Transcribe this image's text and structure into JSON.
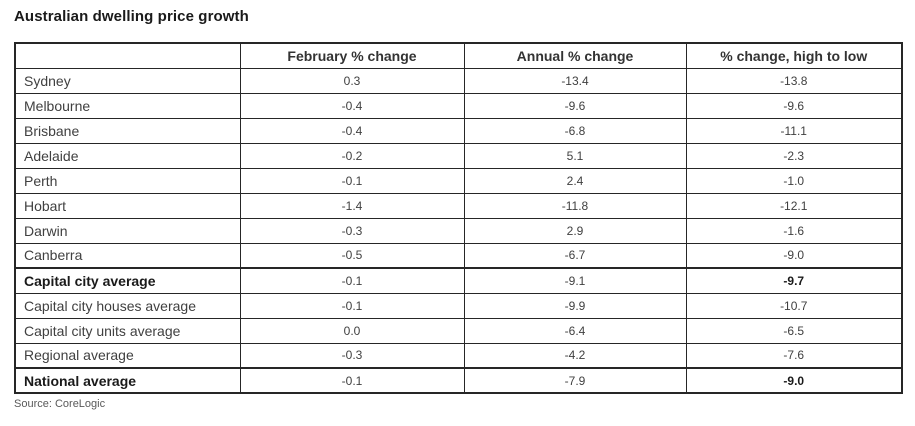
{
  "title": "Australian dwelling price growth",
  "source_label": "Source: CoreLogic",
  "table": {
    "columns": [
      "",
      "February % change",
      "Annual % change",
      "% change, high to low"
    ],
    "rows": [
      {
        "label": "Sydney",
        "values": [
          "0.3",
          "-13.4",
          "-13.8"
        ],
        "bold_label": false,
        "bold_value_cols": [],
        "section_start": false
      },
      {
        "label": "Melbourne",
        "values": [
          "-0.4",
          "-9.6",
          "-9.6"
        ],
        "bold_label": false,
        "bold_value_cols": [],
        "section_start": false
      },
      {
        "label": "Brisbane",
        "values": [
          "-0.4",
          "-6.8",
          "-11.1"
        ],
        "bold_label": false,
        "bold_value_cols": [],
        "section_start": false
      },
      {
        "label": "Adelaide",
        "values": [
          "-0.2",
          "5.1",
          "-2.3"
        ],
        "bold_label": false,
        "bold_value_cols": [],
        "section_start": false
      },
      {
        "label": "Perth",
        "values": [
          "-0.1",
          "2.4",
          "-1.0"
        ],
        "bold_label": false,
        "bold_value_cols": [],
        "section_start": false
      },
      {
        "label": "Hobart",
        "values": [
          "-1.4",
          "-11.8",
          "-12.1"
        ],
        "bold_label": false,
        "bold_value_cols": [],
        "section_start": false
      },
      {
        "label": "Darwin",
        "values": [
          "-0.3",
          "2.9",
          "-1.6"
        ],
        "bold_label": false,
        "bold_value_cols": [],
        "section_start": false
      },
      {
        "label": "Canberra",
        "values": [
          "-0.5",
          "-6.7",
          "-9.0"
        ],
        "bold_label": false,
        "bold_value_cols": [],
        "section_start": false
      },
      {
        "label": "Capital city average",
        "values": [
          "-0.1",
          "-9.1",
          "-9.7"
        ],
        "bold_label": true,
        "bold_value_cols": [
          2
        ],
        "section_start": true
      },
      {
        "label": "Capital city houses average",
        "values": [
          "-0.1",
          "-9.9",
          "-10.7"
        ],
        "bold_label": false,
        "bold_value_cols": [],
        "section_start": false
      },
      {
        "label": "Capital city units average",
        "values": [
          "0.0",
          "-6.4",
          "-6.5"
        ],
        "bold_label": false,
        "bold_value_cols": [],
        "section_start": false
      },
      {
        "label": "Regional average",
        "values": [
          "-0.3",
          "-4.2",
          "-7.6"
        ],
        "bold_label": false,
        "bold_value_cols": [],
        "section_start": false
      },
      {
        "label": "National average",
        "values": [
          "-0.1",
          "-7.9",
          "-9.0"
        ],
        "bold_label": true,
        "bold_value_cols": [
          2
        ],
        "section_start": true
      }
    ]
  },
  "chart_data": {
    "type": "table",
    "title": "Australian dwelling price growth",
    "columns": [
      "February % change",
      "Annual % change",
      "% change, high to low"
    ],
    "rows": [
      [
        "Sydney",
        0.3,
        -13.4,
        -13.8
      ],
      [
        "Melbourne",
        -0.4,
        -9.6,
        -9.6
      ],
      [
        "Brisbane",
        -0.4,
        -6.8,
        -11.1
      ],
      [
        "Adelaide",
        -0.2,
        5.1,
        -2.3
      ],
      [
        "Perth",
        -0.1,
        2.4,
        -1.0
      ],
      [
        "Hobart",
        -1.4,
        -11.8,
        -12.1
      ],
      [
        "Darwin",
        -0.3,
        2.9,
        -1.6
      ],
      [
        "Canberra",
        -0.5,
        -6.7,
        -9.0
      ],
      [
        "Capital city average",
        -0.1,
        -9.1,
        -9.7
      ],
      [
        "Capital city houses average",
        -0.1,
        -9.9,
        -10.7
      ],
      [
        "Capital city units average",
        0.0,
        -6.4,
        -6.5
      ],
      [
        "Regional average",
        -0.3,
        -4.2,
        -7.6
      ],
      [
        "National average",
        -0.1,
        -7.9,
        -9.0
      ]
    ],
    "source": "CoreLogic"
  }
}
